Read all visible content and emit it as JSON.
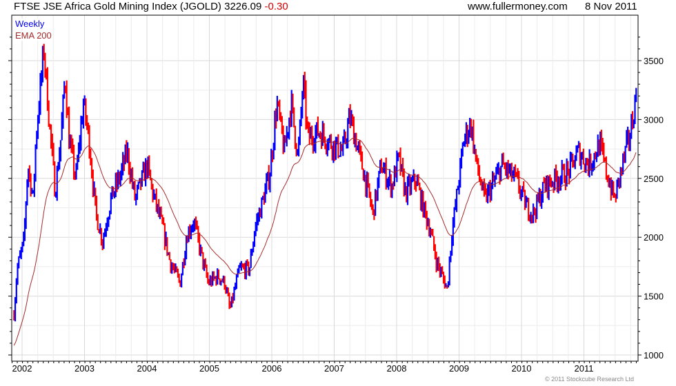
{
  "header": {
    "title": "FTSE JSE Africa Gold Mining Index (JGOLD) 3226.09",
    "change": "-0.30",
    "site": "www.fullermoney.com",
    "date": "8 Nov 2011"
  },
  "legend": [
    "Weekly",
    "EMA 200"
  ],
  "copyright": "© 2011 Stockcube Research Ltd",
  "colors": {
    "up": "#0000ff",
    "down": "#ff0000",
    "ema": "#a52a2a",
    "grid": "#dddddd"
  },
  "chart_data": {
    "type": "line",
    "title": "FTSE JSE Africa Gold Mining Index (JGOLD)",
    "series_names": [
      "Weekly",
      "EMA 200"
    ],
    "x_tick_labels": [
      "2002",
      "2003",
      "2004",
      "2005",
      "2006",
      "2007",
      "2008",
      "2009",
      "2010",
      "2011"
    ],
    "y_tick_labels": [
      "1000",
      "1500",
      "2000",
      "2500",
      "3000",
      "3500"
    ],
    "xlim": [
      2001.83,
      2011.88
    ],
    "ylim": [
      950,
      3700
    ],
    "last_close": 3226.09,
    "ema_start": 1070,
    "price_path": [
      [
        2001.87,
        1350
      ],
      [
        2001.92,
        1730
      ],
      [
        2002.03,
        1970
      ],
      [
        2002.09,
        2610
      ],
      [
        2002.18,
        2320
      ],
      [
        2002.22,
        2840
      ],
      [
        2002.29,
        3250
      ],
      [
        2002.35,
        3600
      ],
      [
        2002.42,
        3080
      ],
      [
        2002.53,
        2380
      ],
      [
        2002.62,
        2840
      ],
      [
        2002.69,
        3370
      ],
      [
        2002.75,
        2840
      ],
      [
        2002.86,
        2490
      ],
      [
        2002.98,
        3140
      ],
      [
        2003.07,
        2840
      ],
      [
        2003.18,
        2200
      ],
      [
        2003.29,
        1970
      ],
      [
        2003.42,
        2320
      ],
      [
        2003.59,
        2550
      ],
      [
        2003.68,
        2730
      ],
      [
        2003.81,
        2320
      ],
      [
        2004.0,
        2610
      ],
      [
        2004.09,
        2380
      ],
      [
        2004.25,
        2080
      ],
      [
        2004.37,
        1790
      ],
      [
        2004.53,
        1610
      ],
      [
        2004.64,
        2020
      ],
      [
        2004.75,
        2140
      ],
      [
        2004.87,
        1850
      ],
      [
        2004.98,
        1610
      ],
      [
        2005.14,
        1670
      ],
      [
        2005.25,
        1610
      ],
      [
        2005.33,
        1380
      ],
      [
        2005.48,
        1730
      ],
      [
        2005.64,
        1730
      ],
      [
        2005.73,
        2080
      ],
      [
        2005.86,
        2320
      ],
      [
        2005.97,
        2550
      ],
      [
        2006.08,
        3140
      ],
      [
        2006.2,
        2730
      ],
      [
        2006.31,
        3140
      ],
      [
        2006.42,
        2670
      ],
      [
        2006.5,
        3310
      ],
      [
        2006.58,
        2840
      ],
      [
        2006.75,
        2900
      ],
      [
        2006.97,
        2790
      ],
      [
        2007.14,
        2730
      ],
      [
        2007.25,
        3020
      ],
      [
        2007.36,
        2790
      ],
      [
        2007.47,
        2550
      ],
      [
        2007.62,
        2200
      ],
      [
        2007.75,
        2610
      ],
      [
        2007.92,
        2430
      ],
      [
        2008.03,
        2670
      ],
      [
        2008.14,
        2380
      ],
      [
        2008.31,
        2490
      ],
      [
        2008.42,
        2260
      ],
      [
        2008.53,
        2080
      ],
      [
        2008.64,
        1790
      ],
      [
        2008.81,
        1560
      ],
      [
        2008.88,
        2020
      ],
      [
        2008.97,
        2380
      ],
      [
        2009.08,
        2840
      ],
      [
        2009.19,
        2960
      ],
      [
        2009.28,
        2610
      ],
      [
        2009.41,
        2320
      ],
      [
        2009.52,
        2430
      ],
      [
        2009.69,
        2610
      ],
      [
        2009.91,
        2490
      ],
      [
        2010.08,
        2260
      ],
      [
        2010.19,
        2200
      ],
      [
        2010.36,
        2430
      ],
      [
        2010.52,
        2490
      ],
      [
        2010.75,
        2550
      ],
      [
        2010.91,
        2730
      ],
      [
        2011.08,
        2610
      ],
      [
        2011.25,
        2790
      ],
      [
        2011.36,
        2550
      ],
      [
        2011.49,
        2320
      ],
      [
        2011.64,
        2670
      ],
      [
        2011.75,
        2900
      ],
      [
        2011.84,
        3226
      ]
    ]
  }
}
